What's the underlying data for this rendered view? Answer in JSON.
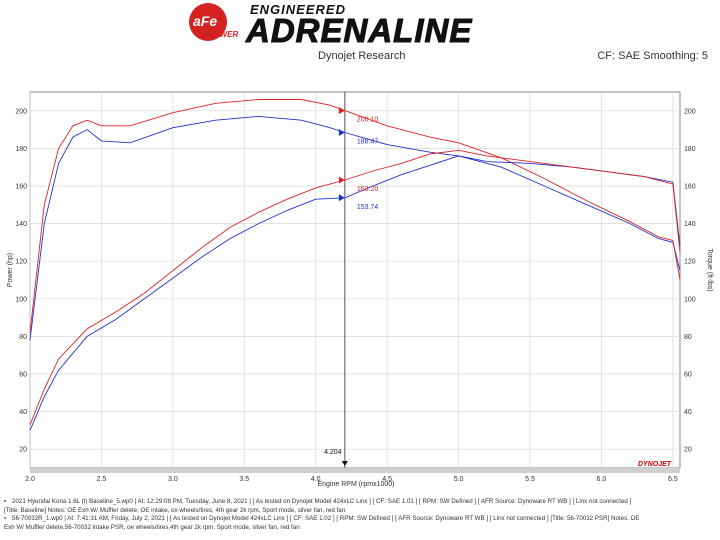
{
  "header": {
    "logo_brand": "aFe",
    "logo_sub": "POWER",
    "logo_eng": "ENGINEERED",
    "logo_main": "ADRENALINE",
    "source": "Dynojet Research",
    "correction": "CF: SAE Smoothing: 5"
  },
  "colors": {
    "baseline": "#2233cc",
    "test": "#dd2222",
    "cursor": "#555555",
    "grid": "#d9d9d9",
    "axis_bg": "#cfcfcf",
    "dynojet_brand": "#cc0000"
  },
  "chart_data": {
    "type": "line",
    "xlabel": "Engine RPM (rpmx1000)",
    "ylabel_left": "Power (hp)",
    "ylabel_right": "Torque (ft-lbs)",
    "xlim": [
      2.0,
      6.55
    ],
    "ylim": [
      10,
      210
    ],
    "x_ticks": [
      "2.0",
      "2.5",
      "3.0",
      "3.5",
      "4.0",
      "4.5",
      "5.0",
      "5.5",
      "6.0",
      "6.5"
    ],
    "y_ticks_left": [
      "20",
      "40",
      "60",
      "80",
      "100",
      "120",
      "140",
      "160",
      "180",
      "200"
    ],
    "y_ticks_right": [
      "20",
      "40",
      "60",
      "80",
      "100",
      "120",
      "140",
      "160",
      "180",
      "200"
    ],
    "grid": true,
    "cursor": {
      "x": 4.204,
      "label": "4.204"
    },
    "annotations": [
      {
        "text": "200.10",
        "x": 4.204,
        "y": 200.1,
        "series": "test_torque"
      },
      {
        "text": "188.47",
        "x": 4.204,
        "y": 188.47,
        "series": "baseline_torque"
      },
      {
        "text": "163.20",
        "x": 4.204,
        "y": 163.2,
        "series": "test_power"
      },
      {
        "text": "153.74",
        "x": 4.204,
        "y": 153.74,
        "series": "baseline_power"
      }
    ],
    "series": [
      {
        "key": "baseline_torque",
        "color": "#2233cc",
        "x": [
          2.0,
          2.1,
          2.2,
          2.3,
          2.4,
          2.5,
          2.7,
          3.0,
          3.3,
          3.6,
          3.9,
          4.1,
          4.204,
          4.5,
          4.8,
          5.0,
          5.3,
          5.6,
          5.9,
          6.2,
          6.4,
          6.5,
          6.55
        ],
        "y": [
          78,
          140,
          172,
          186,
          190,
          184,
          183,
          191,
          195,
          197,
          195,
          191,
          188.47,
          182,
          178,
          176,
          170,
          160,
          150,
          140,
          132,
          130,
          115
        ]
      },
      {
        "key": "test_torque",
        "color": "#dd2222",
        "x": [
          2.0,
          2.1,
          2.2,
          2.3,
          2.4,
          2.5,
          2.7,
          3.0,
          3.3,
          3.6,
          3.9,
          4.1,
          4.204,
          4.5,
          4.8,
          5.0,
          5.3,
          5.6,
          5.9,
          6.2,
          6.4,
          6.5,
          6.55
        ],
        "y": [
          82,
          150,
          180,
          192,
          195,
          192,
          192,
          199,
          204,
          206,
          206,
          203,
          200.1,
          192,
          186,
          183,
          175,
          164,
          152,
          141,
          133,
          131,
          110
        ]
      },
      {
        "key": "baseline_power",
        "color": "#2233cc",
        "x": [
          2.0,
          2.1,
          2.2,
          2.4,
          2.6,
          2.8,
          3.0,
          3.2,
          3.4,
          3.6,
          3.8,
          4.0,
          4.204,
          4.4,
          4.6,
          4.8,
          5.0,
          5.2,
          5.5,
          5.8,
          6.1,
          6.3,
          6.5,
          6.55
        ],
        "y": [
          30,
          48,
          62,
          80,
          89,
          100,
          111,
          122,
          132,
          140,
          147,
          153,
          153.74,
          160,
          166,
          171,
          176,
          173,
          172,
          170,
          167,
          165,
          162,
          128
        ]
      },
      {
        "key": "test_power",
        "color": "#dd2222",
        "x": [
          2.0,
          2.1,
          2.2,
          2.4,
          2.6,
          2.8,
          3.0,
          3.2,
          3.4,
          3.6,
          3.8,
          4.0,
          4.204,
          4.4,
          4.6,
          4.8,
          5.0,
          5.2,
          5.5,
          5.8,
          6.1,
          6.3,
          6.5,
          6.55
        ],
        "y": [
          33,
          52,
          68,
          84,
          93,
          103,
          115,
          127,
          138,
          146,
          153,
          159,
          163.2,
          168,
          172,
          177,
          179,
          176,
          173,
          170,
          167,
          165,
          161,
          125
        ]
      }
    ]
  },
  "footer": {
    "line1": "2021 Hyundai Kona 1.6L (t) Baseline_5.wp0 | At: 12:29:08 PM, Tuesday, June 8, 2021 | [ As tested on Dynojet Model 424xLC Linx ] [ CF: SAE 1.01 ] [ RPM: SW Defined ] [ AFR Source: Dynoware RT WB ] [ Linx not connected ]",
    "line2": "[Title: Baseline] Notes: OE Exh W/ Muffler delete, OE intake, ox wheels/tires, 4th gear 2k rpm, Sport mode, silver fan, red fan",
    "line3": "56-70032R_1.wp0 | At: 7:41:31 AM, Friday, July 2, 2021 | [ As tested on Dynojet Model 424xLC Linx ] [ CF: SAE 1.02 ] [ RPM: SW Defined ] [ AFR Source: Dynoware RT WB ] [ Linx not connected ] [Title: 56-70032 PSR] Notes: OE",
    "line4": "Exh W/ Muffler delete,56-70032 intake PSR, oe wheels/tires,4th gear 2k rpm, Sport mode, silver fan, red fan"
  },
  "dynojet_brand": "DYNOJET"
}
